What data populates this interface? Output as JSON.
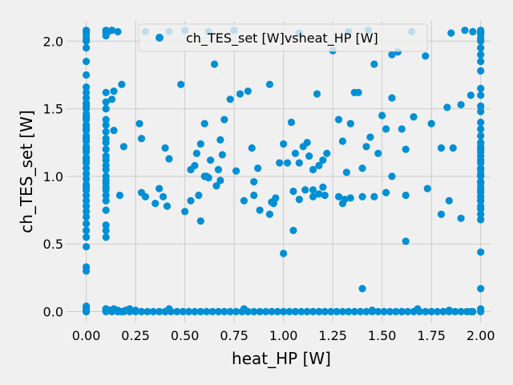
{
  "chart_data": {
    "type": "scatter",
    "title": "",
    "xlabel": "heat_HP [W]",
    "ylabel": "ch_TES_set [W]",
    "xlim": [
      -0.1,
      2.05
    ],
    "ylim": [
      -0.08,
      2.15
    ],
    "xticks": [
      0.0,
      0.25,
      0.5,
      0.75,
      1.0,
      1.25,
      1.5,
      1.75,
      2.0
    ],
    "yticks": [
      0.0,
      0.5,
      1.0,
      1.5,
      2.0
    ],
    "xtick_labels": [
      "0.00",
      "0.25",
      "0.50",
      "0.75",
      "1.00",
      "1.25",
      "1.50",
      "1.75",
      "2.00"
    ],
    "ytick_labels": [
      "0.0",
      "0.5",
      "1.0",
      "1.5",
      "2.0"
    ],
    "grid": true,
    "legend_position": "top-center",
    "color": "#008fd5",
    "series": [
      {
        "name": "ch_TES_set [W]vsheat_HP [W]",
        "x": [
          0.0,
          0.0,
          0.0,
          0.0,
          0.0,
          0.0,
          0.0,
          0.0,
          0.0,
          0.0,
          0.0,
          0.0,
          0.0,
          0.0,
          0.0,
          0.0,
          0.0,
          0.0,
          0.0,
          0.0,
          0.0,
          0.0,
          0.0,
          0.0,
          0.0,
          0.0,
          0.0,
          0.0,
          0.0,
          0.0,
          0.0,
          0.0,
          0.0,
          0.0,
          0.0,
          0.0,
          0.0,
          0.0,
          0.0,
          0.0,
          0.0,
          0.0,
          0.0,
          0.0,
          0.0,
          0.0,
          0.0,
          0.0,
          0.0,
          0.0,
          0.0,
          2.0,
          2.0,
          2.0,
          2.0,
          2.0,
          2.0,
          2.0,
          2.0,
          2.0,
          2.0,
          2.0,
          2.0,
          2.0,
          2.0,
          2.0,
          2.0,
          2.0,
          2.0,
          2.0,
          2.0,
          2.0,
          2.0,
          2.0,
          2.0,
          2.0,
          2.0,
          2.0,
          2.0,
          2.0,
          2.0,
          2.0,
          2.0,
          2.0,
          2.0,
          2.0,
          2.0,
          2.0,
          2.0,
          2.0,
          2.0,
          2.0,
          2.0,
          2.0,
          0.1,
          0.1,
          0.1,
          0.1,
          0.1,
          0.1,
          0.1,
          0.1,
          0.1,
          0.1,
          0.1,
          0.1,
          0.1,
          0.1,
          0.1,
          0.1,
          0.1,
          0.1,
          0.1,
          0.1,
          0.1,
          0.1,
          0.1,
          0.1,
          0.1,
          0.1,
          0.1,
          0.1,
          0.1,
          0.1,
          0.1,
          0.13,
          0.16,
          0.19,
          0.22,
          0.25,
          0.28,
          0.31,
          0.34,
          0.37,
          0.4,
          0.43,
          0.46,
          0.49,
          0.52,
          0.55,
          0.58,
          0.61,
          0.64,
          0.67,
          0.7,
          0.73,
          0.76,
          0.79,
          0.82,
          0.85,
          0.88,
          0.91,
          0.94,
          0.97,
          1.0,
          1.03,
          1.06,
          1.09,
          1.12,
          1.15,
          1.18,
          1.21,
          1.24,
          1.27,
          1.3,
          1.33,
          1.36,
          1.39,
          1.42,
          1.45,
          1.48,
          1.51,
          1.54,
          1.57,
          1.6,
          1.63,
          1.66,
          1.69,
          1.72,
          1.75,
          1.78,
          1.81,
          1.84,
          1.87,
          1.9,
          1.93,
          1.96,
          0.1,
          0.12,
          0.14,
          0.16,
          0.18,
          0.2,
          0.22,
          0.25,
          0.4,
          0.42,
          0.8,
          1.45,
          1.6,
          1.68,
          1.84,
          1.95,
          0.11,
          0.13,
          0.16,
          0.3,
          0.42,
          0.5,
          0.62,
          0.75,
          1.08,
          1.25,
          1.33,
          1.43,
          1.55,
          1.65,
          1.85,
          1.92,
          1.96,
          0.13,
          0.14,
          0.18,
          0.27,
          0.28,
          0.4,
          0.42,
          0.48,
          0.53,
          0.55,
          0.56,
          0.58,
          0.6,
          0.61,
          0.63,
          0.65,
          0.67,
          0.68,
          0.69,
          0.7,
          0.73,
          0.76,
          0.78,
          0.82,
          0.84,
          0.87,
          0.93,
          0.96,
          0.98,
          1.0,
          1.02,
          1.04,
          1.06,
          1.08,
          1.1,
          1.12,
          1.13,
          1.15,
          1.17,
          1.18,
          1.2,
          1.22,
          1.28,
          1.3,
          1.32,
          1.34,
          1.36,
          1.38,
          1.4,
          1.42,
          1.44,
          1.46,
          1.48,
          1.5,
          1.52,
          1.55,
          1.58,
          1.6,
          1.62,
          1.66,
          1.72,
          1.75,
          1.8,
          1.83,
          1.86,
          1.9,
          1.95,
          0.14,
          0.17,
          0.28,
          0.3,
          0.35,
          0.37,
          0.39,
          0.41,
          0.53,
          0.57,
          0.6,
          0.62,
          0.66,
          0.8,
          0.85,
          0.93,
          0.95,
          1.05,
          1.08,
          1.11,
          1.15,
          1.18,
          1.21,
          1.28,
          1.31,
          1.34,
          1.4,
          1.46,
          1.52,
          1.55,
          1.62,
          1.73,
          1.8,
          1.84,
          1.9,
          0.19,
          0.5,
          0.58,
          0.68,
          0.85,
          0.88,
          0.94,
          1.0,
          1.05,
          1.15,
          1.2,
          1.3,
          1.4,
          1.62
        ],
        "y": [
          0.0,
          0.02,
          0.04,
          0.3,
          0.33,
          0.48,
          0.55,
          0.6,
          0.7,
          0.78,
          0.82,
          0.86,
          0.9,
          0.94,
          0.98,
          1.02,
          1.06,
          1.1,
          1.14,
          1.18,
          1.22,
          1.26,
          1.3,
          1.34,
          1.38,
          1.42,
          1.46,
          1.5,
          1.54,
          1.58,
          1.62,
          1.66,
          1.75,
          1.85,
          1.95,
          2.0,
          2.02,
          2.05,
          2.07,
          2.08,
          0.65,
          0.74,
          0.92,
          1.12,
          1.2,
          1.28,
          1.36,
          1.44,
          1.52,
          0.0,
          0.01,
          0.0,
          0.02,
          0.17,
          0.44,
          0.68,
          0.72,
          0.78,
          0.85,
          0.9,
          0.95,
          1.0,
          1.05,
          1.1,
          1.15,
          1.2,
          1.25,
          1.35,
          1.4,
          1.48,
          1.52,
          1.6,
          1.65,
          1.78,
          1.85,
          1.9,
          1.95,
          2.0,
          2.02,
          2.05,
          2.07,
          2.08,
          1.06,
          1.12,
          1.18,
          1.22,
          0.82,
          0.92,
          0.96,
          1.02,
          0.76,
          0.88,
          1.3,
          2.06,
          0.0,
          0.01,
          0.02,
          0.55,
          0.6,
          0.64,
          0.75,
          0.82,
          0.86,
          0.9,
          0.92,
          0.95,
          1.0,
          1.05,
          1.08,
          1.12,
          1.15,
          1.2,
          1.25,
          1.28,
          1.33,
          1.38,
          1.42,
          1.5,
          1.55,
          1.62,
          2.04,
          2.06,
          2.07,
          2.08,
          0.97,
          0.0,
          0.0,
          0.0,
          0.0,
          0.0,
          0.0,
          0.0,
          0.0,
          0.0,
          0.0,
          0.0,
          0.0,
          0.0,
          0.0,
          0.0,
          0.0,
          0.0,
          0.0,
          0.0,
          0.0,
          0.0,
          0.0,
          0.0,
          0.0,
          0.0,
          0.0,
          0.0,
          0.0,
          0.0,
          0.0,
          0.0,
          0.0,
          0.0,
          0.0,
          0.0,
          0.0,
          0.0,
          0.0,
          0.0,
          0.0,
          0.0,
          0.0,
          0.0,
          0.0,
          0.0,
          0.0,
          0.0,
          0.0,
          0.0,
          0.0,
          0.0,
          0.0,
          0.0,
          0.0,
          0.0,
          0.0,
          0.0,
          0.0,
          0.0,
          0.0,
          0.0,
          0.0,
          0.02,
          0.01,
          0.02,
          0.01,
          0.0,
          0.01,
          0.02,
          0.01,
          0.0,
          0.02,
          0.02,
          0.01,
          0.0,
          0.02,
          0.01,
          0.0,
          2.07,
          2.08,
          2.07,
          2.07,
          2.07,
          2.08,
          2.07,
          2.08,
          2.06,
          1.93,
          2.07,
          2.08,
          1.9,
          2.07,
          2.06,
          2.08,
          2.07,
          1.57,
          1.63,
          1.68,
          1.39,
          1.28,
          1.21,
          1.13,
          1.68,
          1.05,
          1.08,
          1.17,
          1.24,
          1.39,
          1.0,
          1.12,
          1.83,
          1.05,
          1.27,
          1.16,
          1.42,
          1.57,
          1.04,
          1.61,
          1.63,
          1.21,
          1.06,
          1.68,
          0.84,
          1.1,
          1.24,
          1.1,
          1.4,
          1.17,
          1.1,
          1.22,
          1.25,
          1.15,
          1.05,
          1.61,
          1.08,
          1.12,
          1.17,
          1.42,
          1.26,
          1.03,
          1.39,
          1.62,
          1.62,
          1.06,
          1.22,
          1.29,
          1.83,
          1.17,
          1.45,
          1.35,
          1.58,
          1.92,
          1.35,
          1.2,
          1.44,
          1.89,
          1.39,
          1.21,
          1.51,
          1.21,
          1.53,
          1.6,
          1.34,
          0.86,
          0.88,
          0.85,
          0.8,
          0.91,
          0.85,
          0.78,
          0.82,
          0.86,
          1.0,
          0.99,
          0.93,
          0.82,
          0.96,
          0.72,
          0.8,
          0.89,
          0.83,
          0.9,
          0.9,
          0.87,
          0.86,
          0.85,
          0.83,
          0.84,
          0.85,
          0.85,
          0.88,
          1.0,
          0.86,
          0.91,
          0.72,
          0.82,
          0.69,
          1.22,
          0.74,
          0.67,
          0.97,
          0.86,
          0.75,
          0.81,
          0.43,
          0.6,
          0.85,
          0.92,
          0.8,
          0.17,
          0.52
        ]
      }
    ]
  }
}
